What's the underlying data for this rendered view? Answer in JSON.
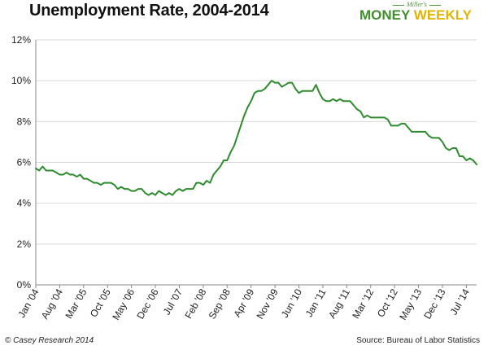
{
  "header": {
    "title": "Unemployment Rate, 2004-2014"
  },
  "logo": {
    "subtitle": "Miller's",
    "word1": "MONEY",
    "word2": "WEEKLY"
  },
  "footer": {
    "copyright": "© Casey Research 2014",
    "source": "Source: Bureau of Labor Statistics"
  },
  "colors": {
    "line": "#2e8b2e",
    "grid": "#d9d9d9",
    "axis": "#888888"
  },
  "chart_data": {
    "type": "line",
    "title": "Unemployment Rate, 2004-2014",
    "xlabel": "",
    "ylabel": "",
    "grid": true,
    "ylim": [
      0,
      12
    ],
    "y_ticks": [
      "0%",
      "2%",
      "4%",
      "6%",
      "8%",
      "10%",
      "12%"
    ],
    "x_ticks": [
      {
        "index": 0,
        "label": "Jan '04"
      },
      {
        "index": 7,
        "label": "Aug '04"
      },
      {
        "index": 14,
        "label": "Mar '05"
      },
      {
        "index": 21,
        "label": "Oct '05"
      },
      {
        "index": 28,
        "label": "May '06"
      },
      {
        "index": 35,
        "label": "Dec '06"
      },
      {
        "index": 42,
        "label": "Jul '07"
      },
      {
        "index": 49,
        "label": "Feb '08"
      },
      {
        "index": 56,
        "label": "Sep '08"
      },
      {
        "index": 63,
        "label": "Apr '09"
      },
      {
        "index": 70,
        "label": "Nov '09"
      },
      {
        "index": 77,
        "label": "Jun '10"
      },
      {
        "index": 84,
        "label": "Jan '11"
      },
      {
        "index": 91,
        "label": "Aug '11"
      },
      {
        "index": 98,
        "label": "Mar '12"
      },
      {
        "index": 105,
        "label": "Oct '12"
      },
      {
        "index": 112,
        "label": "May '13"
      },
      {
        "index": 119,
        "label": "Dec '13"
      },
      {
        "index": 126,
        "label": "Jul '14"
      }
    ],
    "series": [
      {
        "name": "Unemployment Rate (%)",
        "start": "Jan 2004",
        "frequency": "monthly",
        "values": [
          5.7,
          5.6,
          5.8,
          5.6,
          5.6,
          5.6,
          5.5,
          5.4,
          5.4,
          5.5,
          5.4,
          5.4,
          5.3,
          5.4,
          5.2,
          5.2,
          5.1,
          5.0,
          5.0,
          4.9,
          5.0,
          5.0,
          5.0,
          4.9,
          4.7,
          4.8,
          4.7,
          4.7,
          4.6,
          4.6,
          4.7,
          4.7,
          4.5,
          4.4,
          4.5,
          4.4,
          4.6,
          4.5,
          4.4,
          4.5,
          4.4,
          4.6,
          4.7,
          4.6,
          4.7,
          4.7,
          4.7,
          5.0,
          5.0,
          4.9,
          5.1,
          5.0,
          5.4,
          5.6,
          5.8,
          6.1,
          6.1,
          6.5,
          6.8,
          7.3,
          7.8,
          8.3,
          8.7,
          9.0,
          9.4,
          9.5,
          9.5,
          9.6,
          9.8,
          10.0,
          9.9,
          9.9,
          9.7,
          9.8,
          9.9,
          9.9,
          9.6,
          9.4,
          9.5,
          9.5,
          9.5,
          9.5,
          9.8,
          9.4,
          9.1,
          9.0,
          9.0,
          9.1,
          9.0,
          9.1,
          9.0,
          9.0,
          9.0,
          8.8,
          8.6,
          8.5,
          8.2,
          8.3,
          8.2,
          8.2,
          8.2,
          8.2,
          8.2,
          8.1,
          7.8,
          7.8,
          7.8,
          7.9,
          7.9,
          7.7,
          7.5,
          7.5,
          7.5,
          7.5,
          7.5,
          7.3,
          7.2,
          7.2,
          7.2,
          7.0,
          6.7,
          6.6,
          6.7,
          6.7,
          6.3,
          6.3,
          6.1,
          6.2,
          6.1,
          5.9
        ]
      }
    ]
  }
}
